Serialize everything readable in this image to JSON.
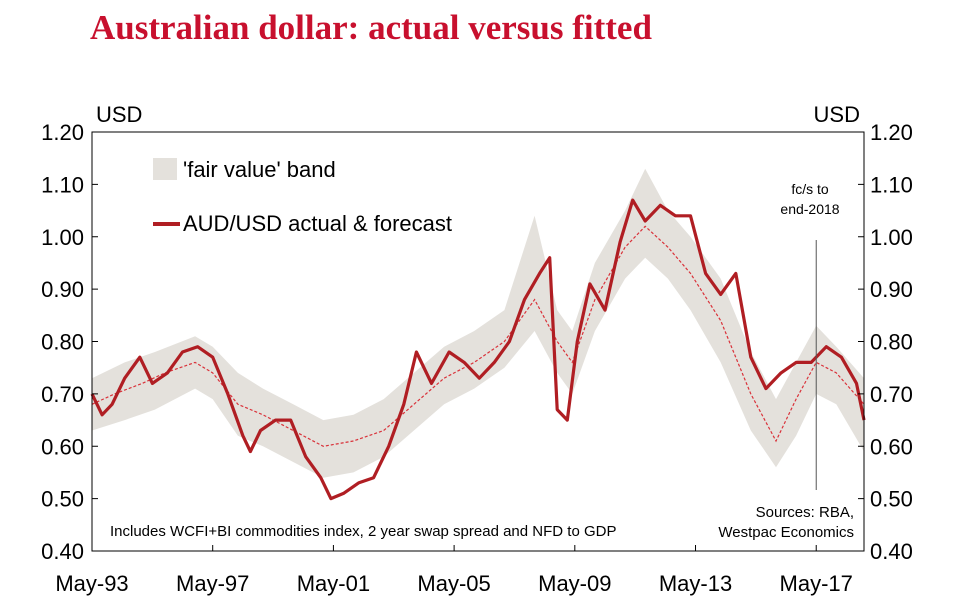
{
  "chart_data": {
    "type": "line",
    "title": "Australian dollar: actual versus fitted",
    "ylabel_left": "USD",
    "ylabel_right": "USD",
    "ylim": [
      0.4,
      1.2
    ],
    "yticks": [
      "1.20",
      "1.10",
      "1.00",
      "0.90",
      "0.80",
      "0.70",
      "0.60",
      "0.50",
      "0.40"
    ],
    "xlim": [
      "1993-05",
      "2018-12"
    ],
    "xticks": [
      "May-93",
      "May-97",
      "May-01",
      "May-05",
      "May-09",
      "May-13",
      "May-17"
    ],
    "legend": {
      "band_label": "'fair value' band",
      "line_label": "AUD/USD actual & forecast"
    },
    "annotations": {
      "forecast_label_1": "fc/s to",
      "forecast_label_2": "end-2018",
      "forecast_marker_x": "2017-05",
      "note": "Includes WCFI+BI commodities index, 2 year swap spread and NFD to GDP",
      "source_1": "Sources: RBA,",
      "source_2": "Westpac Economics"
    },
    "colors": {
      "title": "#c8102e",
      "actual_line": "#b01e23",
      "fitted_line": "#d9323a",
      "band": "#e4e1dc"
    },
    "series": [
      {
        "name": "AUD/USD actual & forecast",
        "style": "solid",
        "points": [
          [
            "1993-05",
            0.7
          ],
          [
            "1993-09",
            0.66
          ],
          [
            "1994-01",
            0.68
          ],
          [
            "1994-06",
            0.73
          ],
          [
            "1994-12",
            0.77
          ],
          [
            "1995-05",
            0.72
          ],
          [
            "1995-11",
            0.74
          ],
          [
            "1996-05",
            0.78
          ],
          [
            "1996-11",
            0.79
          ],
          [
            "1997-05",
            0.77
          ],
          [
            "1997-11",
            0.7
          ],
          [
            "1998-05",
            0.62
          ],
          [
            "1998-08",
            0.59
          ],
          [
            "1998-12",
            0.63
          ],
          [
            "1999-06",
            0.65
          ],
          [
            "1999-12",
            0.65
          ],
          [
            "2000-06",
            0.58
          ],
          [
            "2000-12",
            0.54
          ],
          [
            "2001-04",
            0.5
          ],
          [
            "2001-09",
            0.51
          ],
          [
            "2002-03",
            0.53
          ],
          [
            "2002-09",
            0.54
          ],
          [
            "2003-03",
            0.6
          ],
          [
            "2003-09",
            0.68
          ],
          [
            "2004-02",
            0.78
          ],
          [
            "2004-08",
            0.72
          ],
          [
            "2005-03",
            0.78
          ],
          [
            "2005-09",
            0.76
          ],
          [
            "2006-03",
            0.73
          ],
          [
            "2006-09",
            0.76
          ],
          [
            "2007-03",
            0.8
          ],
          [
            "2007-09",
            0.88
          ],
          [
            "2008-03",
            0.93
          ],
          [
            "2008-07",
            0.96
          ],
          [
            "2008-10",
            0.67
          ],
          [
            "2009-02",
            0.65
          ],
          [
            "2009-06",
            0.8
          ],
          [
            "2009-11",
            0.91
          ],
          [
            "2010-05",
            0.86
          ],
          [
            "2010-11",
            0.99
          ],
          [
            "2011-04",
            1.07
          ],
          [
            "2011-09",
            1.03
          ],
          [
            "2012-03",
            1.06
          ],
          [
            "2012-09",
            1.04
          ],
          [
            "2013-03",
            1.04
          ],
          [
            "2013-09",
            0.93
          ],
          [
            "2014-03",
            0.89
          ],
          [
            "2014-09",
            0.93
          ],
          [
            "2015-03",
            0.77
          ],
          [
            "2015-09",
            0.71
          ],
          [
            "2016-03",
            0.74
          ],
          [
            "2016-09",
            0.76
          ],
          [
            "2017-03",
            0.76
          ],
          [
            "2017-09",
            0.79
          ],
          [
            "2018-03",
            0.77
          ],
          [
            "2018-09",
            0.72
          ],
          [
            "2018-12",
            0.65
          ]
        ]
      },
      {
        "name": "fitted",
        "style": "dotted",
        "points": [
          [
            "1993-05",
            0.68
          ],
          [
            "1994-02",
            0.7
          ],
          [
            "1995-01",
            0.72
          ],
          [
            "1995-10",
            0.74
          ],
          [
            "1996-10",
            0.76
          ],
          [
            "1997-05",
            0.74
          ],
          [
            "1998-03",
            0.68
          ],
          [
            "1999-01",
            0.66
          ],
          [
            "2000-01",
            0.63
          ],
          [
            "2001-01",
            0.6
          ],
          [
            "2002-01",
            0.61
          ],
          [
            "2003-01",
            0.63
          ],
          [
            "2004-01",
            0.68
          ],
          [
            "2005-01",
            0.73
          ],
          [
            "2006-01",
            0.76
          ],
          [
            "2007-01",
            0.8
          ],
          [
            "2008-01",
            0.88
          ],
          [
            "2008-10",
            0.8
          ],
          [
            "2009-04",
            0.76
          ],
          [
            "2010-01",
            0.88
          ],
          [
            "2011-01",
            0.98
          ],
          [
            "2011-09",
            1.02
          ],
          [
            "2012-06",
            0.98
          ],
          [
            "2013-03",
            0.93
          ],
          [
            "2014-03",
            0.84
          ],
          [
            "2015-03",
            0.7
          ],
          [
            "2016-01",
            0.61
          ],
          [
            "2016-09",
            0.69
          ],
          [
            "2017-05",
            0.76
          ],
          [
            "2018-01",
            0.74
          ],
          [
            "2018-12",
            0.68
          ]
        ]
      }
    ],
    "band": {
      "name": "'fair value' band",
      "upper": [
        [
          "1993-05",
          0.73
        ],
        [
          "1994-06",
          0.76
        ],
        [
          "1995-06",
          0.78
        ],
        [
          "1996-10",
          0.81
        ],
        [
          "1997-05",
          0.79
        ],
        [
          "1998-03",
          0.74
        ],
        [
          "1999-01",
          0.71
        ],
        [
          "2000-01",
          0.68
        ],
        [
          "2001-01",
          0.65
        ],
        [
          "2002-01",
          0.66
        ],
        [
          "2003-01",
          0.69
        ],
        [
          "2004-01",
          0.74
        ],
        [
          "2005-01",
          0.79
        ],
        [
          "2006-01",
          0.82
        ],
        [
          "2007-01",
          0.86
        ],
        [
          "2008-01",
          1.04
        ],
        [
          "2008-10",
          0.86
        ],
        [
          "2009-04",
          0.82
        ],
        [
          "2010-01",
          0.95
        ],
        [
          "2011-01",
          1.05
        ],
        [
          "2011-09",
          1.13
        ],
        [
          "2012-06",
          1.05
        ],
        [
          "2013-03",
          1.0
        ],
        [
          "2014-03",
          0.92
        ],
        [
          "2015-03",
          0.78
        ],
        [
          "2016-01",
          0.69
        ],
        [
          "2016-09",
          0.76
        ],
        [
          "2017-05",
          0.83
        ],
        [
          "2018-01",
          0.79
        ],
        [
          "2018-12",
          0.73
        ]
      ],
      "lower": [
        [
          "1993-05",
          0.63
        ],
        [
          "1994-06",
          0.65
        ],
        [
          "1995-06",
          0.67
        ],
        [
          "1996-10",
          0.71
        ],
        [
          "1997-05",
          0.69
        ],
        [
          "1998-03",
          0.62
        ],
        [
          "1999-01",
          0.6
        ],
        [
          "2000-01",
          0.57
        ],
        [
          "2001-01",
          0.54
        ],
        [
          "2002-01",
          0.55
        ],
        [
          "2003-01",
          0.58
        ],
        [
          "2004-01",
          0.63
        ],
        [
          "2005-01",
          0.68
        ],
        [
          "2006-01",
          0.71
        ],
        [
          "2007-01",
          0.75
        ],
        [
          "2008-01",
          0.82
        ],
        [
          "2008-10",
          0.74
        ],
        [
          "2009-04",
          0.7
        ],
        [
          "2010-01",
          0.82
        ],
        [
          "2011-01",
          0.92
        ],
        [
          "2011-09",
          0.96
        ],
        [
          "2012-06",
          0.92
        ],
        [
          "2013-03",
          0.86
        ],
        [
          "2014-03",
          0.76
        ],
        [
          "2015-03",
          0.63
        ],
        [
          "2016-01",
          0.56
        ],
        [
          "2016-09",
          0.62
        ],
        [
          "2017-05",
          0.7
        ],
        [
          "2018-01",
          0.68
        ],
        [
          "2018-12",
          0.59
        ]
      ]
    }
  }
}
